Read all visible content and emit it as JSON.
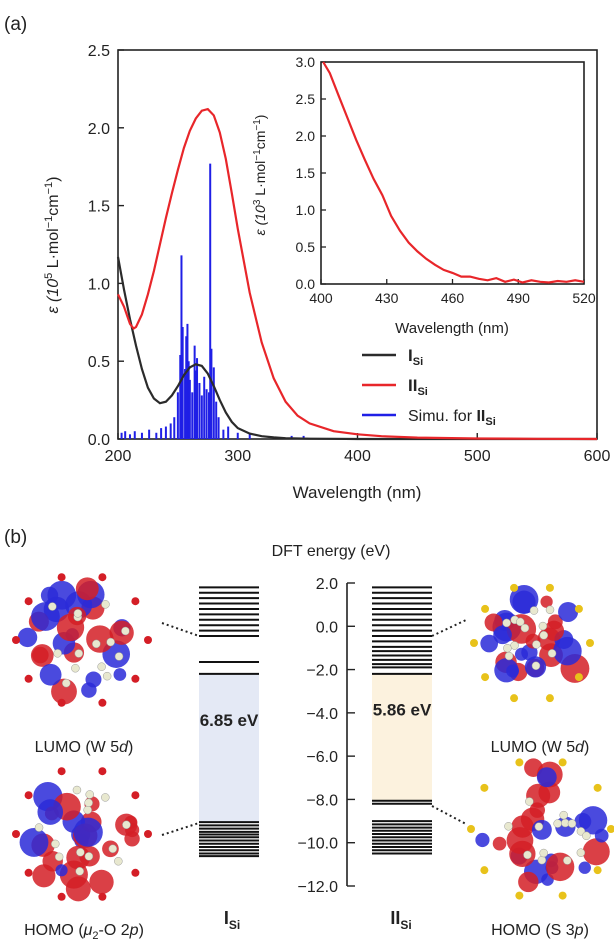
{
  "panel_a": {
    "label": "(a)",
    "xlabel": "Wavelength (nm)",
    "ylabel_prefix": "ε (10",
    "ylabel_exp": "5",
    "ylabel_unit": " L·mol",
    "ylabel_exp2": "−1",
    "ylabel_unit2": "cm",
    "ylabel_exp3": "−1",
    "ylabel_close": ")",
    "legend": {
      "black_label": "I",
      "black_sub": "Si",
      "red_label": "II",
      "red_sub": "Si",
      "blue_prefix": "Simu. for ",
      "blue_label": "II",
      "blue_sub": "Si"
    },
    "inset": {
      "xlabel": "Wavelength (nm)",
      "ylabel_prefix": "ε (10",
      "ylabel_exp": "3",
      "ylabel_unit": " L·mol",
      "ylabel_exp2": "−1",
      "ylabel_unit2": "cm",
      "ylabel_exp3": "−1",
      "ylabel_close": ")"
    }
  },
  "panel_b": {
    "label": "(b)",
    "title": "DFT energy (eV)",
    "gap_left": "6.85 eV",
    "gap_right": "5.86 eV",
    "lumo_left": "LUMO (W 5",
    "lumo_left_italic": "d",
    "lumo_left_close": ")",
    "homo_left_prefix": "HOMO (",
    "homo_left_mu": "μ",
    "homo_left_sub": "2",
    "homo_left_mid": "-O 2",
    "homo_left_italic": "p",
    "homo_left_close": ")",
    "lumo_right": "LUMO (W 5",
    "lumo_right_italic": "d",
    "lumo_right_close": ")",
    "homo_right": "HOMO (S 3",
    "homo_right_italic": "p",
    "homo_right_close": ")",
    "col_left_label": "I",
    "col_left_sub": "Si",
    "col_right_label": "II",
    "col_right_sub": "Si"
  },
  "colors": {
    "black_series": "#2b2b2b",
    "red_series": "#e8262a",
    "blue_series": "#1f1fe6",
    "gap_left_fill": "#e4e9f5",
    "gap_right_fill": "#fcf2de",
    "gap_text": "#1f3a6e",
    "col_label": "#1f3a6e"
  },
  "chart_data": [
    {
      "type": "line",
      "panel": "a-main",
      "xlabel": "Wavelength (nm)",
      "ylabel": "ε (10^5 L·mol^-1cm^-1)",
      "xlim": [
        200,
        600
      ],
      "ylim": [
        0,
        2.5
      ],
      "xticks": [
        200,
        300,
        400,
        500,
        600
      ],
      "yticks": [
        0.0,
        0.5,
        1.0,
        1.5,
        2.0,
        2.5
      ],
      "series": [
        {
          "name": "I_Si",
          "color": "#2b2b2b",
          "x": [
            200,
            205,
            210,
            215,
            220,
            225,
            230,
            235,
            240,
            245,
            250,
            255,
            260,
            265,
            270,
            275,
            280,
            285,
            290,
            295,
            300,
            310,
            320,
            330,
            340,
            360,
            380,
            400,
            450,
            500,
            600
          ],
          "y": [
            1.17,
            0.96,
            0.77,
            0.6,
            0.45,
            0.33,
            0.26,
            0.23,
            0.24,
            0.28,
            0.34,
            0.41,
            0.46,
            0.48,
            0.47,
            0.42,
            0.34,
            0.25,
            0.17,
            0.11,
            0.07,
            0.035,
            0.018,
            0.01,
            0.005,
            0.002,
            0.001,
            0.0,
            0.0,
            0.0,
            0.0
          ]
        },
        {
          "name": "II_Si",
          "color": "#e8262a",
          "x": [
            200,
            205,
            210,
            213,
            215,
            220,
            225,
            230,
            235,
            240,
            245,
            250,
            255,
            260,
            265,
            270,
            275,
            280,
            285,
            290,
            295,
            300,
            310,
            320,
            330,
            340,
            350,
            360,
            380,
            400,
            420,
            450,
            500,
            550,
            600
          ],
          "y": [
            0.93,
            0.85,
            0.74,
            0.71,
            0.72,
            0.8,
            0.93,
            1.08,
            1.25,
            1.42,
            1.58,
            1.73,
            1.87,
            1.98,
            2.06,
            2.11,
            2.12,
            2.08,
            1.97,
            1.8,
            1.58,
            1.35,
            0.94,
            0.62,
            0.39,
            0.24,
            0.15,
            0.1,
            0.05,
            0.03,
            0.018,
            0.009,
            0.003,
            0.001,
            0.0
          ]
        },
        {
          "name": "Simu. for II_Si",
          "color": "#1f1fe6",
          "type": "stick",
          "x": [
            203,
            206,
            210,
            214,
            220,
            226,
            232,
            236,
            240,
            244,
            247,
            250,
            252,
            253,
            254,
            256,
            257,
            258,
            259,
            260,
            262,
            264,
            265,
            266,
            268,
            270,
            272,
            274,
            276,
            277,
            278,
            280,
            282,
            284,
            288,
            292,
            300,
            310,
            345,
            355
          ],
          "y": [
            0.04,
            0.05,
            0.03,
            0.05,
            0.04,
            0.06,
            0.04,
            0.07,
            0.08,
            0.1,
            0.14,
            0.3,
            0.54,
            1.18,
            0.72,
            0.45,
            0.66,
            0.74,
            0.5,
            0.38,
            0.3,
            0.6,
            0.44,
            0.52,
            0.36,
            0.28,
            0.4,
            0.32,
            0.3,
            1.77,
            0.58,
            0.46,
            0.24,
            0.14,
            0.06,
            0.08,
            0.04,
            0.03,
            0.02,
            0.02
          ]
        }
      ]
    },
    {
      "type": "line",
      "panel": "a-inset",
      "xlabel": "Wavelength (nm)",
      "ylabel": "ε (10^3 L·mol^-1cm^-1)",
      "xlim": [
        400,
        520
      ],
      "ylim": [
        0,
        3.0
      ],
      "xticks": [
        400,
        430,
        460,
        490,
        520
      ],
      "yticks": [
        0.0,
        0.5,
        1.0,
        1.5,
        2.0,
        2.5,
        3.0
      ],
      "series": [
        {
          "name": "II_Si",
          "color": "#e8262a",
          "x": [
            401,
            404,
            408,
            412,
            416,
            420,
            424,
            428,
            432,
            436,
            440,
            444,
            448,
            452,
            456,
            460,
            464,
            468,
            472,
            476,
            480,
            484,
            488,
            492,
            496,
            500,
            504,
            508,
            512,
            516,
            520
          ],
          "y": [
            3.0,
            2.85,
            2.55,
            2.25,
            1.95,
            1.68,
            1.42,
            1.2,
            0.92,
            0.72,
            0.56,
            0.44,
            0.34,
            0.26,
            0.19,
            0.15,
            0.1,
            0.1,
            0.07,
            0.05,
            0.08,
            0.03,
            0.06,
            0.02,
            0.05,
            0.03,
            0.02,
            0.04,
            0.03,
            0.05,
            0.03
          ]
        }
      ]
    },
    {
      "type": "energy-levels",
      "panel": "b",
      "title": "DFT energy (eV)",
      "ylim": [
        -12.0,
        2.0
      ],
      "yticks": [
        2.0,
        0.0,
        -2.0,
        -4.0,
        -6.0,
        -8.0,
        -10.0,
        -12.0
      ],
      "series": [
        {
          "name": "I_Si",
          "gap": 6.85,
          "lumo": -2.2,
          "homo": -9.05,
          "levels": [
            -9.05,
            -9.2,
            -9.35,
            -9.5,
            -9.62,
            -9.75,
            -9.9,
            -10.05,
            -10.2,
            -10.35,
            -10.5,
            -10.62,
            -2.2,
            -1.65,
            -0.45,
            -0.2,
            0.05,
            0.3,
            0.55,
            0.8,
            1.05,
            1.3,
            1.55,
            1.8
          ]
        },
        {
          "name": "II_Si",
          "gap": 5.86,
          "lumo": -2.2,
          "homo": -8.06,
          "levels": [
            -8.06,
            -8.2,
            -9.0,
            -9.15,
            -9.3,
            -9.45,
            -9.6,
            -9.75,
            -9.9,
            -10.05,
            -10.2,
            -10.35,
            -10.5,
            -2.2,
            -1.9,
            -1.75,
            -1.55,
            -1.35,
            -1.15,
            -0.95,
            -0.7,
            -0.45,
            -0.2,
            0.05,
            0.3,
            0.55,
            0.8,
            1.05,
            1.3,
            1.55,
            1.8
          ]
        }
      ]
    }
  ]
}
